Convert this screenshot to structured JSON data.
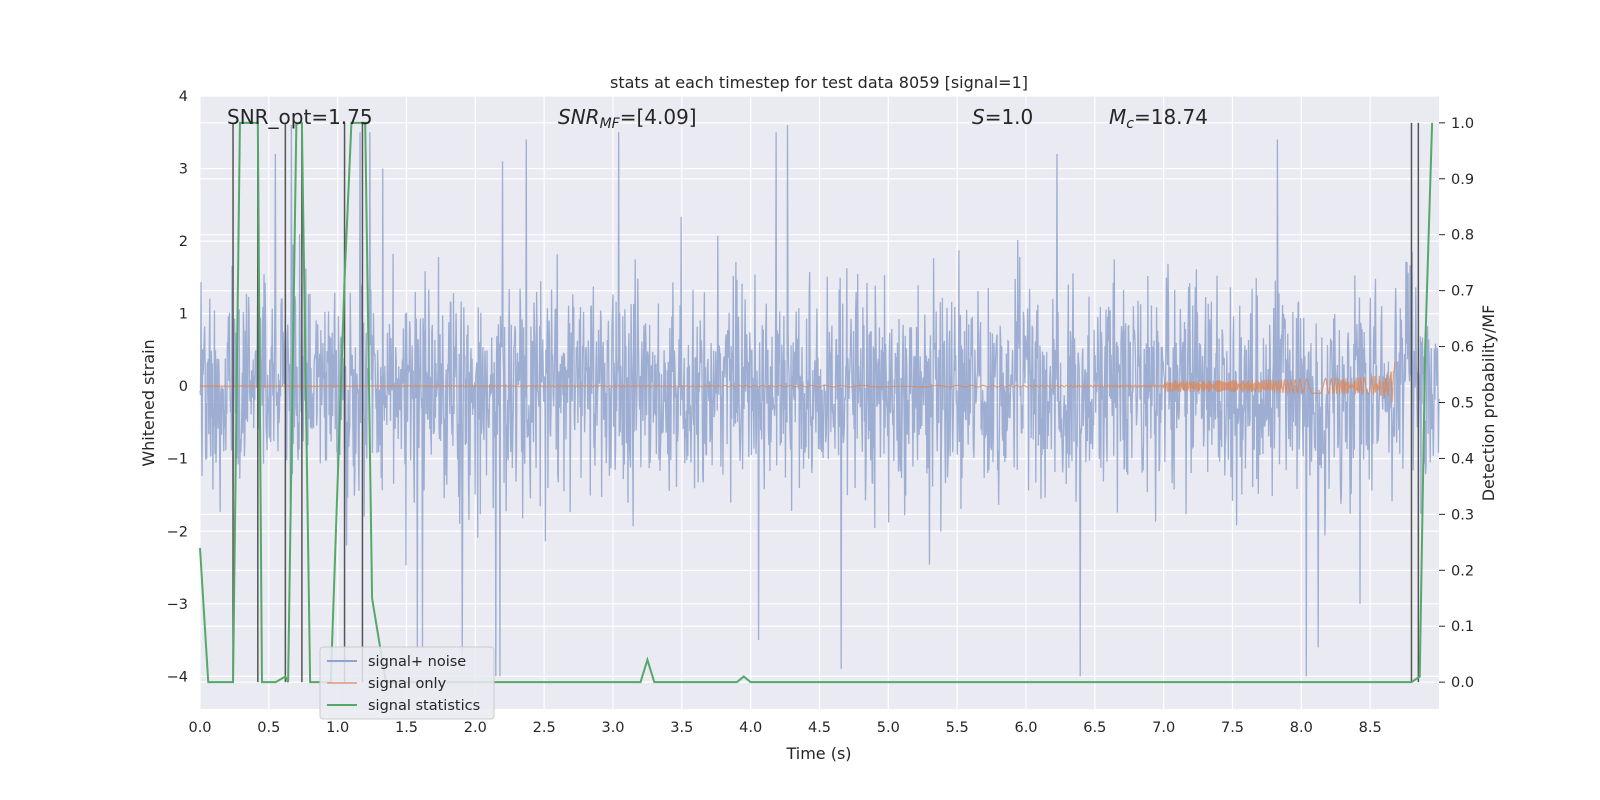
{
  "chart_data": {
    "type": "line",
    "title": "stats at each timestep for test data 8059 [signal=1]",
    "xlabel": "Time (s)",
    "ylabel": "Whitened strain",
    "ylabel_right": "Detection probability/MF",
    "xlim": [
      0.0,
      9.0
    ],
    "ylim": [
      -4.45,
      4.0
    ],
    "ylim_right": [
      -0.048,
      1.048
    ],
    "x_ticks": [
      "0.0",
      "0.5",
      "1.0",
      "1.5",
      "2.0",
      "2.5",
      "3.0",
      "3.5",
      "4.0",
      "4.5",
      "5.0",
      "5.5",
      "6.0",
      "6.5",
      "7.0",
      "7.5",
      "8.0",
      "8.5"
    ],
    "y_ticks": [
      "4",
      "3",
      "2",
      "1",
      "0",
      "−1",
      "−2",
      "−3",
      "−4"
    ],
    "y_ticks_right": [
      "1.0",
      "0.9",
      "0.8",
      "0.7",
      "0.6",
      "0.5",
      "0.4",
      "0.3",
      "0.2",
      "0.1",
      "0.0"
    ],
    "grid": true,
    "legend_position": "lower-left",
    "annotations": {
      "snr_opt": "SNR_opt=1.75",
      "snr_mf_main": "SNR",
      "snr_mf_sub": "MF",
      "snr_mf_value": "=[4.09]",
      "s_main": "S",
      "s_value": "=1.0",
      "mc_main": "M",
      "mc_sub": "c",
      "mc_value": "=18.74"
    },
    "series": [
      {
        "name": "signal+ noise",
        "color": "#8fa3cc",
        "axis": "left",
        "x_range": [
          0.0,
          9.0
        ],
        "envelope_typical": [
          -1.9,
          2.2
        ],
        "spike_peaks": [
          3.6,
          3.5,
          3.6,
          3.2,
          3.0,
          3.4,
          3.6,
          3.5,
          3.1,
          3.6,
          3.6,
          3.2,
          3.4,
          3.6,
          3.1,
          3.4
        ],
        "spike_troughs": [
          -3.6,
          -3.5,
          -3.0,
          -3.7,
          -3.9,
          -3.8,
          -3.6,
          -3.6,
          -4.0
        ]
      },
      {
        "name": "signal only",
        "color": "#dd8452",
        "axis": "left",
        "chirp_start": 0.0,
        "chirp_end": 8.68,
        "chirp_max_amplitude": 0.35
      },
      {
        "name": "signal statistics",
        "color": "#55a868",
        "axis": "right",
        "x": [
          0.0,
          0.06,
          0.24,
          0.29,
          0.42,
          0.45,
          0.5,
          0.55,
          0.62,
          0.64,
          0.7,
          0.74,
          0.8,
          0.95,
          1.05,
          1.1,
          1.2,
          1.25,
          1.35,
          1.45,
          3.2,
          3.25,
          3.3,
          3.5,
          3.6,
          3.9,
          3.95,
          4.0,
          4.2,
          4.6,
          5.0,
          6.0,
          8.8,
          8.86,
          8.9,
          8.95
        ],
        "values": [
          0.24,
          0.0,
          0.0,
          1.0,
          1.0,
          0.0,
          0.0,
          0.0,
          0.01,
          0.0,
          1.0,
          1.0,
          0.0,
          0.0,
          0.72,
          1.0,
          1.0,
          0.15,
          0.0,
          0.0,
          0.0,
          0.04,
          0.0,
          0.0,
          0.0,
          0.0,
          0.01,
          0.0,
          0.0,
          0.0,
          0.0,
          0.0,
          0.0,
          0.01,
          0.6,
          1.0
        ]
      },
      {
        "name": "",
        "color": "#555555",
        "type": "vlines",
        "x": [
          0.24,
          0.42,
          0.62,
          0.74,
          1.05,
          1.18,
          8.8,
          8.85
        ]
      }
    ]
  }
}
